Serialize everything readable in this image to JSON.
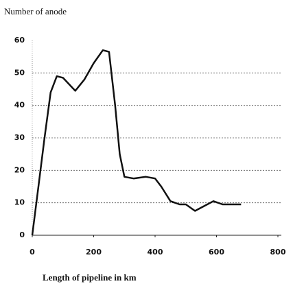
{
  "chart_data": {
    "type": "line",
    "y_axis_label": "Number of anode",
    "x_axis_label": "Length of pipeline in km",
    "x": [
      0,
      20,
      40,
      60,
      80,
      100,
      140,
      170,
      200,
      230,
      250,
      270,
      285,
      300,
      330,
      370,
      400,
      420,
      450,
      480,
      500,
      530,
      560,
      590,
      620,
      680
    ],
    "values": [
      0,
      15,
      30,
      44,
      49,
      48.5,
      44.5,
      48,
      53,
      57,
      56.5,
      40,
      25,
      18,
      17.5,
      18,
      17.5,
      15,
      10.5,
      9.5,
      9.5,
      7.5,
      9,
      10.5,
      9.5,
      9.5
    ],
    "color": "#111111",
    "xlim": [
      0,
      800
    ],
    "xticks": [
      0,
      200,
      400,
      600,
      800
    ],
    "ylim": [
      0,
      60
    ],
    "yticks": [
      0,
      10,
      20,
      30,
      40,
      50,
      60
    ],
    "grid": true
  }
}
